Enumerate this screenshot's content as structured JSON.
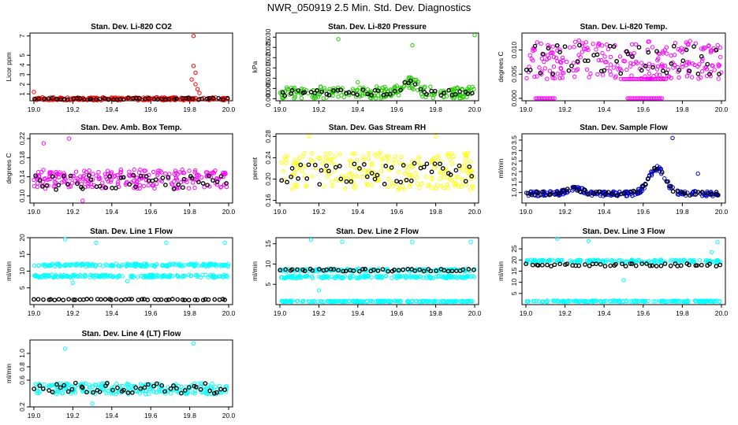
{
  "title": "NWR_050919  2.5 Min. Std. Dev. Diagnostics",
  "colors": {
    "co2": "#ff0000",
    "pressure": "#22cc00",
    "temp": "#ff00ff",
    "rh": "#ffff00",
    "flow": "#0000cc",
    "line": "#00ffff",
    "overlay": "#000000"
  },
  "chart_data": [
    {
      "type": "scatter",
      "title": "Stan. Dev. Li-820 CO2",
      "ylabel": "Licor ppm",
      "color": "#ff0000",
      "xlim": [
        19.0,
        20.0
      ],
      "xticks": [
        "19.0",
        "19.2",
        "19.4",
        "19.6",
        "19.8",
        "20.0"
      ],
      "ylim": [
        0.3,
        7.3
      ],
      "yticks": [
        {
          "v": 1,
          "t": "1"
        },
        {
          "v": 2,
          "t": "2"
        },
        {
          "v": 3,
          "t": "3"
        },
        {
          "v": 4,
          "t": "4"
        },
        {
          "v": 5,
          "t": "5"
        },
        {
          "v": 7,
          "t": "7"
        }
      ],
      "band_base": 0.5,
      "band_amp": 0.15,
      "overlay_base": 0.5,
      "overlay_amp": 0.08,
      "spikes": [
        {
          "x": 19.0,
          "y": 1.2
        },
        {
          "x": 19.82,
          "y": 7.0
        },
        {
          "x": 19.82,
          "y": 3.9
        },
        {
          "x": 19.83,
          "y": 3.2
        },
        {
          "x": 19.81,
          "y": 2.5
        },
        {
          "x": 19.83,
          "y": 2.0
        },
        {
          "x": 19.84,
          "y": 1.5
        },
        {
          "x": 19.85,
          "y": 1.1
        }
      ],
      "bumps": []
    },
    {
      "type": "scatter",
      "title": "Stan. Dev. Li-820 Pressure",
      "ylabel": "kPa",
      "color": "#22cc00",
      "xlim": [
        19.0,
        20.0
      ],
      "xticks": [
        "19.0",
        "19.2",
        "19.4",
        "19.6",
        "19.8",
        "20.0"
      ],
      "ylim": [
        -0.001,
        0.032
      ],
      "yticks": [
        {
          "v": 0,
          "t": "0.000"
        },
        {
          "v": 0.005,
          "t": "0.005"
        },
        {
          "v": 0.01,
          "t": "0.010"
        },
        {
          "v": 0.015,
          "t": "0.015"
        },
        {
          "v": 0.02,
          "t": "0.020"
        },
        {
          "v": 0.025,
          "t": "0.025"
        },
        {
          "v": 0.03,
          "t": "0.030"
        }
      ],
      "band_base": 0.003,
      "band_amp": 0.003,
      "overlay_base": 0.003,
      "overlay_amp": 0.0015,
      "spikes": [
        {
          "x": 19.3,
          "y": 0.029
        },
        {
          "x": 19.68,
          "y": 0.026
        },
        {
          "x": 20.0,
          "y": 0.031
        },
        {
          "x": 19.4,
          "y": 0.008
        }
      ],
      "bumps": [
        {
          "c": 19.67,
          "w": 0.05,
          "h": 0.005
        }
      ]
    },
    {
      "type": "scatter",
      "title": "Stan. Dev. Li-820 Temp.",
      "ylabel": "degrees C",
      "color": "#ff00ff",
      "xlim": [
        19.0,
        20.0
      ],
      "xticks": [
        "19.0",
        "19.2",
        "19.4",
        "19.6",
        "19.8",
        "20.0"
      ],
      "ylim": [
        -0.0005,
        0.0135
      ],
      "yticks": [
        {
          "v": 0,
          "t": "0.000"
        },
        {
          "v": 0.005,
          "t": "0.005"
        },
        {
          "v": 0.01,
          "t": "0.010"
        }
      ],
      "band_base": 0.008,
      "band_amp": 0.004,
      "overlay_base": 0.008,
      "overlay_amp": 0.003,
      "spikes": [],
      "bumps": [],
      "flatlines": [
        {
          "x0": 19.5,
          "x1": 19.72,
          "y": 0.004
        },
        {
          "x0": 19.52,
          "x1": 19.7,
          "y": 0.0
        },
        {
          "x0": 19.05,
          "x1": 19.15,
          "y": 0.0
        }
      ]
    },
    {
      "type": "scatter",
      "title": "Stan. Dev. Amb. Box Temp.",
      "ylabel": "degrees C",
      "color": "#ff00ff",
      "xlim": [
        19.0,
        20.0
      ],
      "xticks": [
        "19.0",
        "19.2",
        "19.4",
        "19.6",
        "19.8",
        "20.0"
      ],
      "ylim": [
        0.085,
        0.23
      ],
      "yticks": [
        {
          "v": 0.1,
          "t": "0.10"
        },
        {
          "v": 0.14,
          "t": "0.14"
        },
        {
          "v": 0.18,
          "t": "0.18"
        },
        {
          "v": 0.22,
          "t": "0.22"
        }
      ],
      "band_base": 0.135,
      "band_amp": 0.02,
      "overlay_base": 0.128,
      "overlay_amp": 0.015,
      "spikes": [
        {
          "x": 19.05,
          "y": 0.21
        },
        {
          "x": 19.18,
          "y": 0.22
        },
        {
          "x": 19.25,
          "y": 0.09
        }
      ],
      "bumps": []
    },
    {
      "type": "scatter",
      "title": "Stan. Dev. Gas Stream RH",
      "ylabel": "percent",
      "color": "#ffff00",
      "xlim": [
        19.0,
        20.0
      ],
      "xticks": [
        "19.0",
        "19.2",
        "19.4",
        "19.6",
        "19.8",
        "20.0"
      ],
      "ylim": [
        0.155,
        0.285
      ],
      "yticks": [
        {
          "v": 0.16,
          "t": "0.16"
        },
        {
          "v": 0.2,
          "t": "0.20"
        },
        {
          "v": 0.24,
          "t": "0.24"
        },
        {
          "v": 0.28,
          "t": "0.28"
        }
      ],
      "band_base": 0.215,
      "band_amp": 0.035,
      "overlay_base": 0.21,
      "overlay_amp": 0.02,
      "spikes": [
        {
          "x": 19.15,
          "y": 0.28
        },
        {
          "x": 19.8,
          "y": 0.28
        }
      ],
      "bumps": []
    },
    {
      "type": "scatter",
      "title": "Stan. Dev. Sample Flow",
      "ylabel": "ml/min",
      "color": "#0000cc",
      "xlim": [
        19.0,
        20.0
      ],
      "xticks": [
        "19.0",
        "19.2",
        "19.4",
        "19.6",
        "19.8",
        "20.0"
      ],
      "ylim": [
        0.5,
        3.8
      ],
      "yticks": [
        {
          "v": 1.0,
          "t": "1.0"
        },
        {
          "v": 1.5,
          "t": "1.5"
        },
        {
          "v": 2.0,
          "t": "2.0"
        },
        {
          "v": 2.5,
          "t": "2.5"
        },
        {
          "v": 3.0,
          "t": "3.0"
        },
        {
          "v": 3.5,
          "t": "3.5"
        }
      ],
      "band_base": 0.95,
      "band_amp": 0.12,
      "overlay_base": 0.95,
      "overlay_amp": 0.1,
      "spikes": [
        {
          "x": 19.75,
          "y": 3.6
        },
        {
          "x": 19.88,
          "y": 1.9
        }
      ],
      "bumps": [
        {
          "c": 19.67,
          "w": 0.06,
          "h": 1.2
        },
        {
          "c": 19.25,
          "w": 0.05,
          "h": 0.25
        }
      ]
    },
    {
      "type": "scatter",
      "title": "Stan. Dev. Line 1 Flow",
      "ylabel": "ml/min",
      "color": "#00ffff",
      "xlim": [
        19.0,
        20.0
      ],
      "xticks": [
        "19.0",
        "19.2",
        "19.4",
        "19.6",
        "19.8",
        "20.0"
      ],
      "ylim": [
        0,
        20
      ],
      "yticks": [
        {
          "v": 5,
          "t": "5"
        },
        {
          "v": 10,
          "t": "10"
        },
        {
          "v": 15,
          "t": "15"
        },
        {
          "v": 20,
          "t": "20"
        }
      ],
      "bands": [
        {
          "base": 11.8,
          "amp": 0.4
        },
        {
          "base": 8.5,
          "amp": 0.4
        }
      ],
      "overlay_base": 1.5,
      "overlay_amp": 0.15,
      "spikes": [
        {
          "x": 19.16,
          "y": 19.5
        },
        {
          "x": 19.32,
          "y": 18.5
        },
        {
          "x": 19.68,
          "y": 18.5
        },
        {
          "x": 19.98,
          "y": 18.5
        },
        {
          "x": 19.2,
          "y": 6.5
        },
        {
          "x": 19.48,
          "y": 7.0
        }
      ],
      "bumps": []
    },
    {
      "type": "scatter",
      "title": "Stan. Dev. Line 2 Flow",
      "ylabel": "ml/min",
      "color": "#00ffff",
      "xlim": [
        19.0,
        20.0
      ],
      "xticks": [
        "19.0",
        "19.2",
        "19.4",
        "19.6",
        "19.8",
        "20.0"
      ],
      "ylim": [
        0,
        16.5
      ],
      "yticks": [
        {
          "v": 5,
          "t": "5"
        },
        {
          "v": 10,
          "t": "10"
        },
        {
          "v": 15,
          "t": "15"
        }
      ],
      "bands": [
        {
          "base": 8.5,
          "amp": 0.3
        },
        {
          "base": 6.8,
          "amp": 0.3
        },
        {
          "base": 0.8,
          "amp": 0.15
        }
      ],
      "overlay_base": 8.5,
      "overlay_amp": 0.3,
      "spikes": [
        {
          "x": 19.16,
          "y": 16.0
        },
        {
          "x": 19.32,
          "y": 15.5
        },
        {
          "x": 19.68,
          "y": 15.5
        },
        {
          "x": 19.98,
          "y": 15.5
        },
        {
          "x": 19.2,
          "y": 3.5
        }
      ],
      "bumps": []
    },
    {
      "type": "scatter",
      "title": "Stan. Dev. Line 3 Flow",
      "ylabel": "ml/min",
      "color": "#00ffff",
      "xlim": [
        19.0,
        20.0
      ],
      "xticks": [
        "19.0",
        "19.2",
        "19.4",
        "19.6",
        "19.8",
        "20.0"
      ],
      "ylim": [
        0,
        30
      ],
      "yticks": [
        {
          "v": 5,
          "t": "5"
        },
        {
          "v": 10,
          "t": "10"
        },
        {
          "v": 15,
          "t": "15"
        },
        {
          "v": 20,
          "t": "20"
        },
        {
          "v": 25,
          "t": "25"
        }
      ],
      "bands": [
        {
          "base": 19.5,
          "amp": 0.6
        },
        {
          "base": 1.5,
          "amp": 0.3
        }
      ],
      "overlay_base": 17.8,
      "overlay_amp": 0.6,
      "spikes": [
        {
          "x": 19.16,
          "y": 29.5
        },
        {
          "x": 19.32,
          "y": 28.5
        },
        {
          "x": 19.98,
          "y": 28.0
        },
        {
          "x": 19.95,
          "y": 23.5
        },
        {
          "x": 19.5,
          "y": 11.0
        }
      ],
      "bumps": []
    },
    {
      "type": "scatter",
      "title": "Stan. Dev. Line 4 (LT) Flow",
      "ylabel": "ml/min",
      "color": "#00ffff",
      "xlim": [
        19.0,
        20.0
      ],
      "xticks": [
        "19.0",
        "19.2",
        "19.4",
        "19.6",
        "19.8",
        "20.0"
      ],
      "ylim": [
        0.2,
        1.2
      ],
      "yticks": [
        {
          "v": 0.2,
          "t": "0.2"
        },
        {
          "v": 0.6,
          "t": "0.6"
        },
        {
          "v": 0.8,
          "t": "0.8"
        },
        {
          "v": 1.0,
          "t": "1.0"
        }
      ],
      "band_base": 0.47,
      "band_amp": 0.08,
      "overlay_base": 0.48,
      "overlay_amp": 0.08,
      "spikes": [
        {
          "x": 19.16,
          "y": 1.07
        },
        {
          "x": 19.82,
          "y": 1.15
        },
        {
          "x": 19.3,
          "y": 0.25
        }
      ],
      "bumps": []
    }
  ]
}
